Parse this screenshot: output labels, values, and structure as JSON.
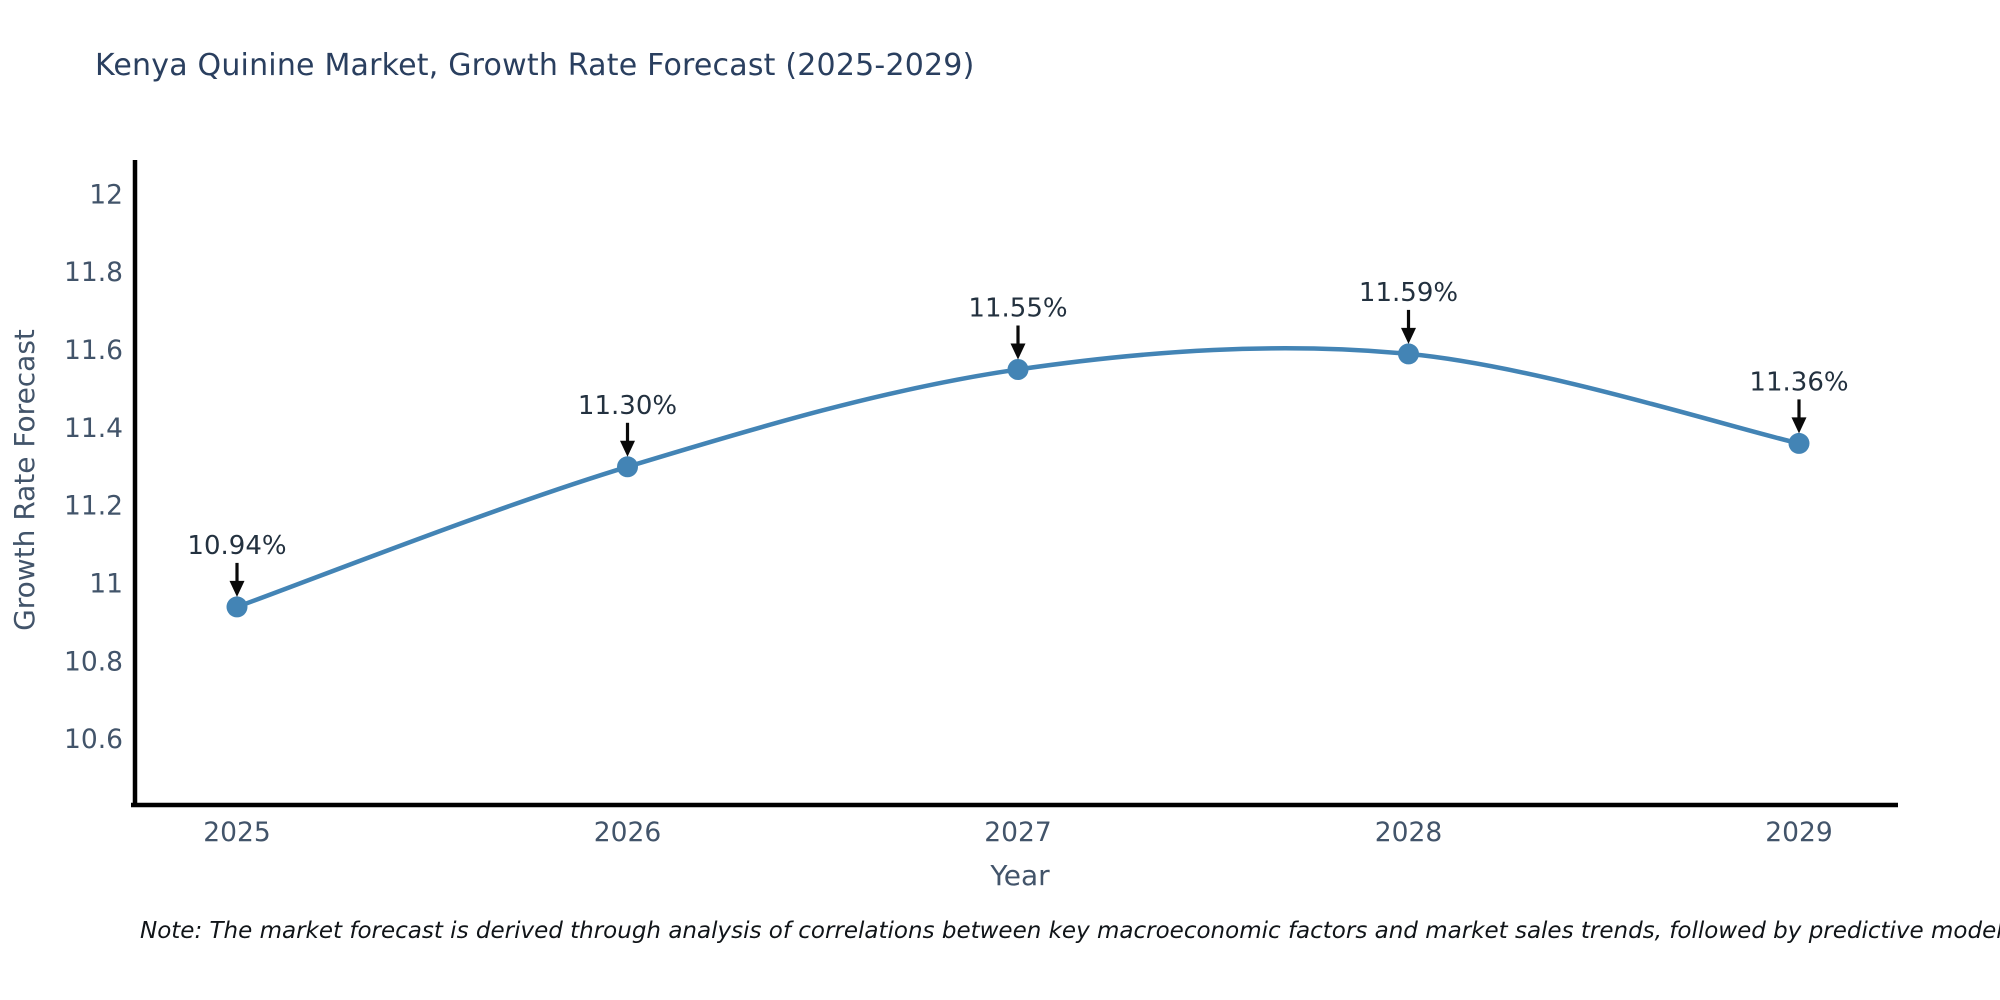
{
  "note": "Note: The market forecast is derived through analysis of correlations between key macroeconomic factors and market sales trends, followed by predictive modeling to project future sal",
  "chart_data": {
    "type": "line",
    "title": "Kenya Quinine Market, Growth Rate Forecast (2025-2029)",
    "xlabel": "Year",
    "ylabel": "Growth Rate Forecast",
    "x": [
      2025,
      2026,
      2027,
      2028,
      2029
    ],
    "values": [
      10.94,
      11.3,
      11.55,
      11.59,
      11.36
    ],
    "point_labels": [
      "10.94%",
      "11.30%",
      "11.55%",
      "11.59%",
      "11.36%"
    ],
    "xticks": [
      "2025",
      "2026",
      "2027",
      "2028",
      "2029"
    ],
    "yticks": [
      "12",
      "11.8",
      "11.6",
      "11.4",
      "11.2",
      "11",
      "10.8",
      "10.6"
    ],
    "ylim": [
      10.431,
      12.083
    ],
    "grid": false,
    "legend": "none",
    "colors": {
      "line": "#4384b5",
      "marker": "#4384b5",
      "axis": "#000000",
      "title_text": "#2a3f5f",
      "tick_text": "#42546a",
      "annotation_text": "#23313f",
      "arrow": "#0a0a0a"
    }
  }
}
